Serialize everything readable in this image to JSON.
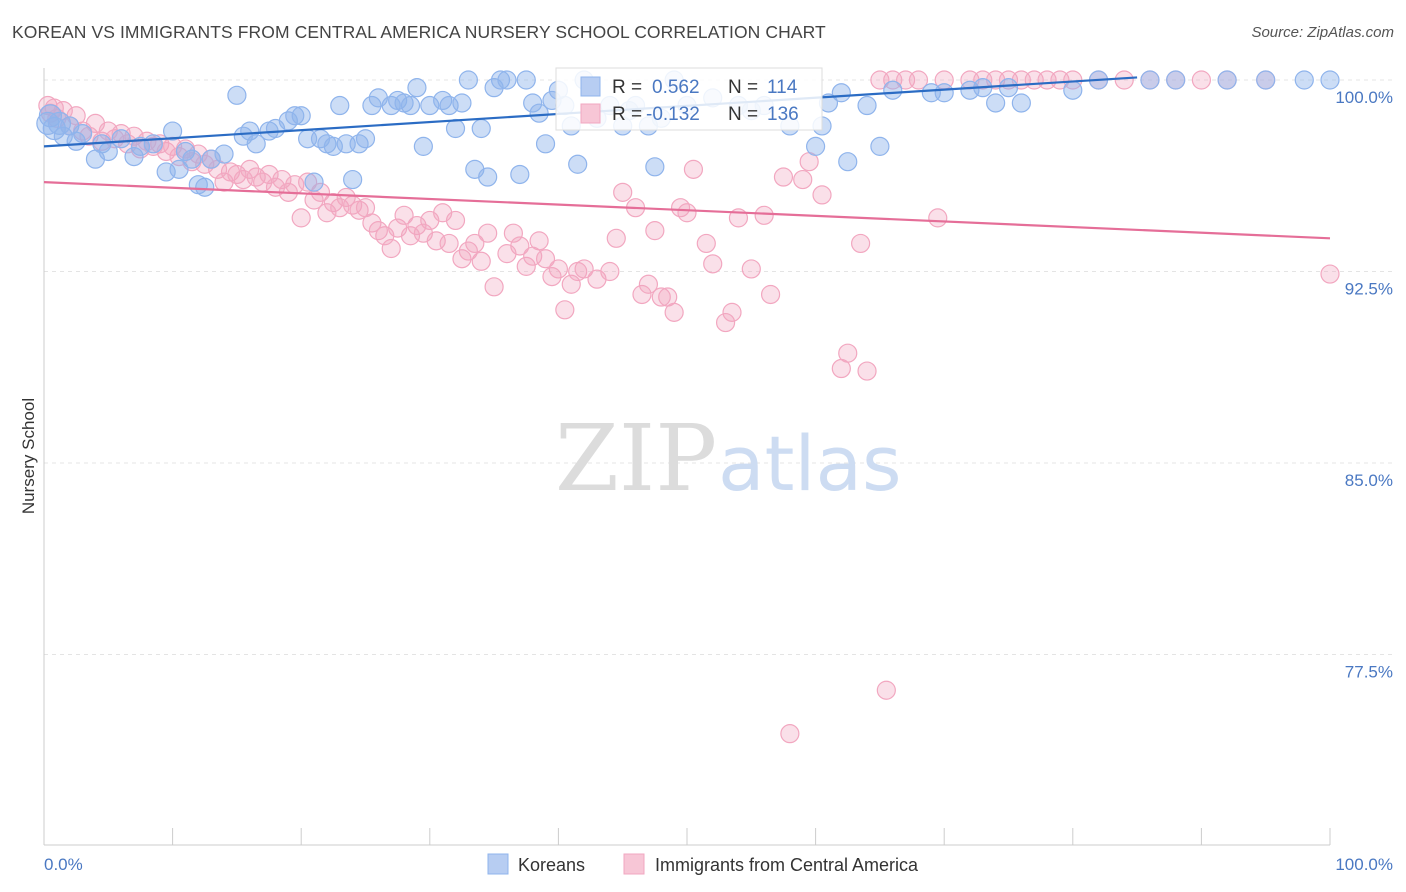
{
  "title": "KOREAN VS IMMIGRANTS FROM CENTRAL AMERICA NURSERY SCHOOL CORRELATION CHART",
  "source": "Source: ZipAtlas.com",
  "watermark": {
    "zip": "ZIP",
    "atlas": "atlas"
  },
  "chart_data": {
    "type": "scatter",
    "title": "KOREAN VS IMMIGRANTS FROM CENTRAL AMERICA NURSERY SCHOOL CORRELATION CHART",
    "xlabel": "",
    "ylabel": "Nursery School",
    "xlim": [
      0,
      100
    ],
    "ylim": [
      70.0,
      101.5
    ],
    "x_tick_labels": [
      "0.0%",
      "100.0%"
    ],
    "y_ticks": [
      {
        "value": 100.0,
        "label": "100.0%"
      },
      {
        "value": 92.5,
        "label": "92.5%"
      },
      {
        "value": 85.0,
        "label": "85.0%"
      },
      {
        "value": 77.5,
        "label": "77.5%"
      }
    ],
    "grid": "horizontal dashed",
    "legend_position": "bottom-center",
    "stats_box": {
      "r_label": "R =",
      "n_label": "N =",
      "rows": [
        {
          "r": "0.562",
          "n": "114",
          "color": "#4a78c2"
        },
        {
          "r": "-0.132",
          "n": "136",
          "color": "#e56e98"
        }
      ]
    },
    "series": [
      {
        "name": "Koreans",
        "color": "#8fb4ec",
        "line_color": "#2b6cc4",
        "trend": [
          [
            0,
            97.4
          ],
          [
            85,
            100.1
          ]
        ],
        "points": [
          [
            0.3,
            98.3
          ],
          [
            0.5,
            98.6
          ],
          [
            0.8,
            98.1
          ],
          [
            1.2,
            98.3
          ],
          [
            1.5,
            97.8
          ],
          [
            2.0,
            98.2
          ],
          [
            2.5,
            97.6
          ],
          [
            3.0,
            97.9
          ],
          [
            4.0,
            96.9
          ],
          [
            4.5,
            97.5
          ],
          [
            5.0,
            97.2
          ],
          [
            6.0,
            97.7
          ],
          [
            7.0,
            97.0
          ],
          [
            7.5,
            97.4
          ],
          [
            8.5,
            97.5
          ],
          [
            9.5,
            96.4
          ],
          [
            10.0,
            98.0
          ],
          [
            10.5,
            96.5
          ],
          [
            11.0,
            97.2
          ],
          [
            11.5,
            96.9
          ],
          [
            12.0,
            95.9
          ],
          [
            12.5,
            95.8
          ],
          [
            13.0,
            96.9
          ],
          [
            14.0,
            97.1
          ],
          [
            15.0,
            99.4
          ],
          [
            15.5,
            97.8
          ],
          [
            16.0,
            98.0
          ],
          [
            16.5,
            97.5
          ],
          [
            17.5,
            98.0
          ],
          [
            18.0,
            98.1
          ],
          [
            19.0,
            98.4
          ],
          [
            19.5,
            98.6
          ],
          [
            20.0,
            98.6
          ],
          [
            20.5,
            97.7
          ],
          [
            21.0,
            96.0
          ],
          [
            21.5,
            97.7
          ],
          [
            22.0,
            97.5
          ],
          [
            22.5,
            97.4
          ],
          [
            23.0,
            99.0
          ],
          [
            23.5,
            97.5
          ],
          [
            24.0,
            96.1
          ],
          [
            24.5,
            97.5
          ],
          [
            25.0,
            97.7
          ],
          [
            25.5,
            99.0
          ],
          [
            26.0,
            99.3
          ],
          [
            27.0,
            99.0
          ],
          [
            27.5,
            99.2
          ],
          [
            28.0,
            99.1
          ],
          [
            28.5,
            99.0
          ],
          [
            29.0,
            99.7
          ],
          [
            29.5,
            97.4
          ],
          [
            30.0,
            99.0
          ],
          [
            31.0,
            99.2
          ],
          [
            31.5,
            99.0
          ],
          [
            32.0,
            98.1
          ],
          [
            32.5,
            99.1
          ],
          [
            33.0,
            100.0
          ],
          [
            33.5,
            96.5
          ],
          [
            34.0,
            98.1
          ],
          [
            34.5,
            96.2
          ],
          [
            35.0,
            99.7
          ],
          [
            35.5,
            100.0
          ],
          [
            36.0,
            100.0
          ],
          [
            37.0,
            96.3
          ],
          [
            37.5,
            100.0
          ],
          [
            38.0,
            99.1
          ],
          [
            38.5,
            98.7
          ],
          [
            39.0,
            97.5
          ],
          [
            39.5,
            99.2
          ],
          [
            40.0,
            99.6
          ],
          [
            40.5,
            99.0
          ],
          [
            41.0,
            98.2
          ],
          [
            41.5,
            96.7
          ],
          [
            42.0,
            100.0
          ],
          [
            43.0,
            98.5
          ],
          [
            44.0,
            99.0
          ],
          [
            45.0,
            98.2
          ],
          [
            45.5,
            98.8
          ],
          [
            46.0,
            99.0
          ],
          [
            47.0,
            98.2
          ],
          [
            47.5,
            96.6
          ],
          [
            48.0,
            98.5
          ],
          [
            49.0,
            100.0
          ],
          [
            50.0,
            99.0
          ],
          [
            52.0,
            99.3
          ],
          [
            54.0,
            99.0
          ],
          [
            55.0,
            98.8
          ],
          [
            56.0,
            99.0
          ],
          [
            58.0,
            98.2
          ],
          [
            60.0,
            97.4
          ],
          [
            61.0,
            99.1
          ],
          [
            62.0,
            99.5
          ],
          [
            64.0,
            99.0
          ],
          [
            66.0,
            99.6
          ],
          [
            69.0,
            99.5
          ],
          [
            70.0,
            99.5
          ],
          [
            72.0,
            99.6
          ],
          [
            73.0,
            99.7
          ],
          [
            75.0,
            99.7
          ],
          [
            80.0,
            99.6
          ],
          [
            82.0,
            100.0
          ],
          [
            86.0,
            100.0
          ],
          [
            88.0,
            100.0
          ],
          [
            92.0,
            100.0
          ],
          [
            95.0,
            100.0
          ],
          [
            98.0,
            100.0
          ],
          [
            100.0,
            100.0
          ],
          [
            74.0,
            99.1
          ],
          [
            76.0,
            99.1
          ],
          [
            62.5,
            96.8
          ],
          [
            65.0,
            97.4
          ],
          [
            60.5,
            98.2
          ]
        ]
      },
      {
        "name": "Immigrants from Central America",
        "color": "#f2a7c0",
        "line_color": "#e56e98",
        "trend": [
          [
            0,
            96.0
          ],
          [
            100,
            93.8
          ]
        ],
        "points": [
          [
            0.3,
            99.0
          ],
          [
            0.5,
            98.7
          ],
          [
            0.8,
            98.9
          ],
          [
            1.0,
            98.5
          ],
          [
            1.5,
            98.8
          ],
          [
            2.0,
            98.2
          ],
          [
            2.5,
            98.6
          ],
          [
            3.0,
            98.0
          ],
          [
            3.5,
            97.8
          ],
          [
            4.0,
            98.3
          ],
          [
            4.5,
            97.6
          ],
          [
            5.0,
            98.0
          ],
          [
            5.5,
            97.7
          ],
          [
            6.0,
            97.9
          ],
          [
            6.5,
            97.5
          ],
          [
            7.0,
            97.8
          ],
          [
            7.5,
            97.3
          ],
          [
            8.0,
            97.6
          ],
          [
            8.5,
            97.4
          ],
          [
            9.0,
            97.5
          ],
          [
            9.5,
            97.2
          ],
          [
            10.0,
            97.4
          ],
          [
            10.5,
            97.0
          ],
          [
            11.0,
            97.3
          ],
          [
            11.5,
            96.8
          ],
          [
            12.0,
            97.1
          ],
          [
            12.5,
            96.7
          ],
          [
            13.0,
            96.9
          ],
          [
            13.5,
            96.5
          ],
          [
            14.0,
            96.0
          ],
          [
            14.5,
            96.4
          ],
          [
            15.0,
            96.3
          ],
          [
            15.5,
            96.1
          ],
          [
            16.0,
            96.5
          ],
          [
            16.5,
            96.2
          ],
          [
            17.0,
            96.0
          ],
          [
            17.5,
            96.3
          ],
          [
            18.0,
            95.8
          ],
          [
            18.5,
            96.1
          ],
          [
            19.0,
            95.6
          ],
          [
            19.5,
            95.9
          ],
          [
            20.0,
            94.6
          ],
          [
            20.5,
            96.0
          ],
          [
            21.0,
            95.3
          ],
          [
            21.5,
            95.6
          ],
          [
            22.0,
            94.8
          ],
          [
            22.5,
            95.2
          ],
          [
            23.0,
            95.0
          ],
          [
            23.5,
            95.4
          ],
          [
            24.0,
            95.1
          ],
          [
            24.5,
            94.9
          ],
          [
            25.0,
            95.0
          ],
          [
            25.5,
            94.4
          ],
          [
            26.0,
            94.1
          ],
          [
            26.5,
            93.9
          ],
          [
            27.0,
            93.4
          ],
          [
            27.5,
            94.2
          ],
          [
            28.0,
            94.7
          ],
          [
            28.5,
            93.9
          ],
          [
            29.0,
            94.3
          ],
          [
            29.5,
            94.0
          ],
          [
            30.0,
            94.5
          ],
          [
            30.5,
            93.7
          ],
          [
            31.0,
            94.8
          ],
          [
            31.5,
            93.6
          ],
          [
            32.0,
            94.5
          ],
          [
            32.5,
            93.0
          ],
          [
            33.0,
            93.3
          ],
          [
            33.5,
            93.6
          ],
          [
            34.0,
            92.9
          ],
          [
            34.5,
            94.0
          ],
          [
            35.0,
            91.9
          ],
          [
            36.0,
            93.2
          ],
          [
            36.5,
            94.0
          ],
          [
            37.0,
            93.5
          ],
          [
            37.5,
            92.7
          ],
          [
            38.0,
            93.1
          ],
          [
            38.5,
            93.7
          ],
          [
            39.0,
            93.0
          ],
          [
            39.5,
            92.3
          ],
          [
            40.0,
            92.6
          ],
          [
            40.5,
            91.0
          ],
          [
            41.0,
            92.0
          ],
          [
            41.5,
            92.5
          ],
          [
            42.0,
            92.6
          ],
          [
            43.0,
            92.2
          ],
          [
            44.0,
            92.5
          ],
          [
            44.5,
            93.8
          ],
          [
            45.0,
            95.6
          ],
          [
            46.0,
            95.0
          ],
          [
            46.5,
            91.6
          ],
          [
            47.0,
            92.0
          ],
          [
            47.5,
            94.1
          ],
          [
            48.0,
            91.5
          ],
          [
            48.5,
            91.5
          ],
          [
            49.0,
            90.9
          ],
          [
            49.5,
            95.0
          ],
          [
            50.0,
            94.8
          ],
          [
            50.5,
            96.5
          ],
          [
            51.5,
            93.6
          ],
          [
            52.0,
            92.8
          ],
          [
            53.0,
            90.5
          ],
          [
            53.5,
            90.9
          ],
          [
            54.0,
            94.6
          ],
          [
            55.0,
            92.6
          ],
          [
            56.0,
            94.7
          ],
          [
            56.5,
            91.6
          ],
          [
            57.5,
            96.2
          ],
          [
            59.0,
            96.1
          ],
          [
            59.5,
            96.8
          ],
          [
            60.5,
            95.5
          ],
          [
            62.0,
            88.7
          ],
          [
            62.5,
            89.3
          ],
          [
            63.5,
            93.6
          ],
          [
            64.0,
            88.6
          ],
          [
            65.0,
            100.0
          ],
          [
            66.0,
            100.0
          ],
          [
            67.0,
            100.0
          ],
          [
            68.0,
            100.0
          ],
          [
            69.5,
            94.6
          ],
          [
            70.0,
            100.0
          ],
          [
            72.0,
            100.0
          ],
          [
            73.0,
            100.0
          ],
          [
            74.0,
            100.0
          ],
          [
            75.0,
            100.0
          ],
          [
            76.0,
            100.0
          ],
          [
            77.0,
            100.0
          ],
          [
            78.0,
            100.0
          ],
          [
            79.0,
            100.0
          ],
          [
            80.0,
            100.0
          ],
          [
            82.0,
            100.0
          ],
          [
            84.0,
            100.0
          ],
          [
            86.0,
            100.0
          ],
          [
            88.0,
            100.0
          ],
          [
            90.0,
            100.0
          ],
          [
            92.0,
            100.0
          ],
          [
            95.0,
            100.0
          ],
          [
            100.0,
            92.4
          ],
          [
            65.5,
            76.1
          ],
          [
            58.0,
            74.4
          ]
        ]
      }
    ]
  }
}
